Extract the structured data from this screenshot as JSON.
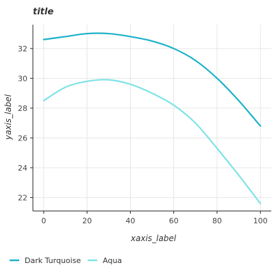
{
  "chart_data": {
    "type": "line",
    "title": "title",
    "xlabel": "xaxis_label",
    "ylabel": "yaxis_label",
    "x": [
      0,
      10,
      20,
      30,
      40,
      50,
      60,
      70,
      80,
      90,
      100
    ],
    "series": [
      {
        "name": "Dark Turquoise",
        "color": "#1bb1c9",
        "values": [
          32.6,
          32.8,
          33.0,
          33.0,
          32.8,
          32.5,
          32.0,
          31.2,
          30.0,
          28.5,
          26.8
        ]
      },
      {
        "name": "Aqua",
        "color": "#7ee3e6",
        "values": [
          28.5,
          29.4,
          29.8,
          29.9,
          29.6,
          29.0,
          28.2,
          27.0,
          25.3,
          23.5,
          21.6
        ]
      }
    ],
    "xlim": [
      -5,
      105
    ],
    "ylim": [
      21.1,
      33.6
    ],
    "xticks": [
      0,
      20,
      40,
      60,
      80,
      100
    ],
    "xtick_labels": [
      "0",
      "20",
      "40",
      "60",
      "80",
      "100"
    ],
    "yticks": [
      22,
      24,
      26,
      28,
      30,
      32
    ],
    "ytick_labels": [
      "22",
      "24",
      "26",
      "28",
      "30",
      "32"
    ],
    "grid": true,
    "legend": "bottom"
  }
}
